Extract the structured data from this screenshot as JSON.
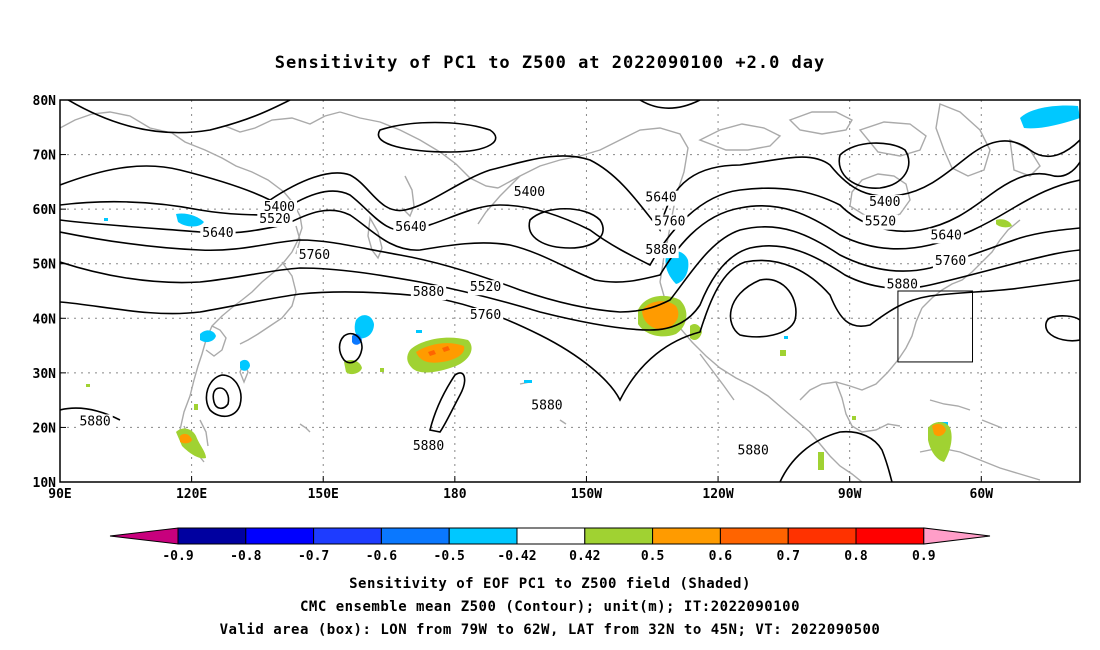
{
  "title": "Sensitivity of PC1 to Z500 at 2022090100 +2.0 day",
  "map": {
    "lon_labels": [
      "90E",
      "120E",
      "150E",
      "180",
      "150W",
      "120W",
      "90W",
      "60W"
    ],
    "lat_labels": [
      "80N",
      "70N",
      "60N",
      "50N",
      "40N",
      "30N",
      "20N",
      "10N"
    ],
    "grid": true,
    "coast_color": "#aaaaaa",
    "contour_color": "#000000"
  },
  "contours": {
    "labels": [
      {
        "text": "5400",
        "lon": 140,
        "lat": 60.4
      },
      {
        "text": "5520",
        "lon": 139,
        "lat": 58.2
      },
      {
        "text": "5640",
        "lon": 126,
        "lat": 55.6
      },
      {
        "text": "5760",
        "lon": 148,
        "lat": 51.6
      },
      {
        "text": "5880",
        "lon": 174,
        "lat": 44.8
      },
      {
        "text": "5640",
        "lon": 170,
        "lat": 56.7
      },
      {
        "text": "5400",
        "lon": 197,
        "lat": 63.1
      },
      {
        "text": "5520",
        "lon": 187,
        "lat": 45.7
      },
      {
        "text": "5760",
        "lon": 187,
        "lat": 40.6
      },
      {
        "text": "5640",
        "lon": 227,
        "lat": 62.1
      },
      {
        "text": "5760",
        "lon": 229,
        "lat": 57.7
      },
      {
        "text": "5880",
        "lon": 227,
        "lat": 52.5
      },
      {
        "text": "5400",
        "lon": 278,
        "lat": 61.3
      },
      {
        "text": "5520",
        "lon": 277,
        "lat": 57.7
      },
      {
        "text": "5640",
        "lon": 292,
        "lat": 55.2
      },
      {
        "text": "5760",
        "lon": 293,
        "lat": 50.5
      },
      {
        "text": "5880",
        "lon": 282,
        "lat": 46.2
      },
      {
        "text": "5880",
        "lon": 98,
        "lat": 21.1
      },
      {
        "text": "5880",
        "lon": 174,
        "lat": 16.6
      },
      {
        "text": "5880",
        "lon": 201,
        "lat": 24.0
      },
      {
        "text": "5880",
        "lon": 248,
        "lat": 15.8
      }
    ]
  },
  "valid_box": {
    "lon_min": 281,
    "lon_max": 298,
    "lat_min": 32,
    "lat_max": 45
  },
  "colorbar": {
    "labels": [
      "-0.9",
      "-0.8",
      "-0.7",
      "-0.6",
      "-0.5",
      "-0.42",
      "0.42",
      "0.5",
      "0.6",
      "0.7",
      "0.8",
      "0.9"
    ],
    "colors": [
      "#0000a0",
      "#0000ff",
      "#1e3cff",
      "#0a78ff",
      "#00c8ff",
      "#ffffff",
      "#a0d232",
      "#ff9b00",
      "#ff6400",
      "#ff3200",
      "#ff0000"
    ],
    "low_color": "#c8007d",
    "high_color": "#ff9ec8"
  },
  "footer": [
    "Sensitivity of EOF PC1 to Z500 field (Shaded)",
    "CMC ensemble mean Z500 (Contour); unit(m); IT:2022090100",
    "Valid area (box): LON from 79W to 62W, LAT from 32N to 45N; VT: 2022090500"
  ]
}
